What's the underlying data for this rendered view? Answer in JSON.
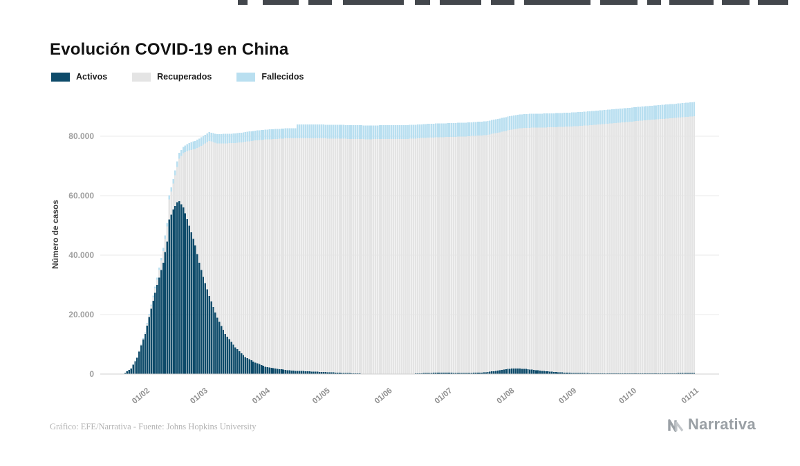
{
  "header": {
    "title": "Evolución COVID-19 en China"
  },
  "y_axis": {
    "title": "Número de casos"
  },
  "footer": {
    "credit": "Gráfico: EFE/Narrativa - Fuente: Johns Hopkins University",
    "logo_text": "Narrativa"
  },
  "top_strip": {
    "color": "#43474c",
    "segments": [
      [
        344,
        14
      ],
      [
        380,
        52
      ],
      [
        446,
        34
      ],
      [
        496,
        88
      ],
      [
        600,
        22
      ],
      [
        636,
        60
      ],
      [
        710,
        34
      ],
      [
        758,
        96
      ],
      [
        868,
        54
      ],
      [
        936,
        20
      ],
      [
        968,
        64
      ],
      [
        1044,
        40
      ],
      [
        1096,
        44
      ]
    ]
  },
  "chart_data": {
    "type": "bar",
    "stacked": true,
    "title": "Evolución COVID-19 en China",
    "xlabel": "",
    "ylabel": "Número de casos",
    "ylim": [
      0,
      95000
    ],
    "grid": "horizontal",
    "legend_position": "top-left",
    "series": [
      {
        "key": "activos",
        "name": "Activos",
        "color": "#0e4b6a"
      },
      {
        "key": "recuperados",
        "name": "Recuperados",
        "color": "#e4e4e4"
      },
      {
        "key": "fallecidos",
        "name": "Fallecidos",
        "color": "#b9dff0"
      }
    ],
    "y_ticks": [
      {
        "value": 0,
        "label": "0"
      },
      {
        "value": 20000,
        "label": "20.000"
      },
      {
        "value": 40000,
        "label": "40.000"
      },
      {
        "value": 60000,
        "label": "60.000"
      },
      {
        "value": 80000,
        "label": "80.000"
      }
    ],
    "x_ticks": [
      {
        "day": 10,
        "label": "01/02"
      },
      {
        "day": 39,
        "label": "01/03"
      },
      {
        "day": 70,
        "label": "01/04"
      },
      {
        "day": 100,
        "label": "01/05"
      },
      {
        "day": 131,
        "label": "01/06"
      },
      {
        "day": 161,
        "label": "01/07"
      },
      {
        "day": 192,
        "label": "01/08"
      },
      {
        "day": 223,
        "label": "01/09"
      },
      {
        "day": 253,
        "label": "01/10"
      },
      {
        "day": 284,
        "label": "01/11"
      }
    ],
    "x_range_days": [
      0,
      284
    ],
    "point_format": [
      "day",
      "activos",
      "recuperados",
      "fallecidos"
    ],
    "points": [
      [
        0,
        400,
        30,
        17
      ],
      [
        3,
        1900,
        50,
        56
      ],
      [
        6,
        5500,
        110,
        131
      ],
      [
        8,
        9700,
        190,
        213
      ],
      [
        10,
        13500,
        330,
        259
      ],
      [
        13,
        22000,
        900,
        425
      ],
      [
        16,
        30000,
        1800,
        636
      ],
      [
        19,
        37500,
        3900,
        1016
      ],
      [
        21,
        44500,
        5100,
        1260
      ],
      [
        22,
        52000,
        6700,
        1368
      ],
      [
        24,
        55300,
        8800,
        1523
      ],
      [
        26,
        57800,
        11900,
        1770
      ],
      [
        27,
        58100,
        14400,
        1870
      ],
      [
        29,
        56000,
        18300,
        2130
      ],
      [
        31,
        52100,
        22900,
        2360
      ],
      [
        33,
        47700,
        27700,
        2595
      ],
      [
        35,
        43200,
        32500,
        2715
      ],
      [
        37,
        37400,
        39000,
        2790
      ],
      [
        39,
        32700,
        44500,
        2870
      ],
      [
        42,
        26300,
        52100,
        2984
      ],
      [
        46,
        18900,
        58700,
        3100
      ],
      [
        50,
        13500,
        64100,
        3176
      ],
      [
        55,
        8970,
        68700,
        3237
      ],
      [
        60,
        5740,
        72400,
        3274
      ],
      [
        65,
        3870,
        74700,
        3296
      ],
      [
        70,
        2500,
        76400,
        3312
      ],
      [
        75,
        1860,
        77200,
        3331
      ],
      [
        80,
        1380,
        77900,
        3343
      ],
      [
        85,
        1100,
        78200,
        3350
      ],
      [
        86,
        1080,
        78250,
        4636
      ],
      [
        90,
        960,
        78400,
        4636
      ],
      [
        100,
        650,
        78600,
        4637
      ],
      [
        110,
        340,
        78800,
        4637
      ],
      [
        120,
        130,
        78870,
        4638
      ],
      [
        131,
        90,
        78950,
        4638
      ],
      [
        140,
        80,
        79000,
        4638
      ],
      [
        146,
        220,
        79050,
        4638
      ],
      [
        152,
        400,
        79150,
        4638
      ],
      [
        161,
        440,
        79300,
        4639
      ],
      [
        170,
        330,
        79600,
        4639
      ],
      [
        180,
        560,
        79800,
        4640
      ],
      [
        187,
        1300,
        80000,
        4650
      ],
      [
        192,
        1800,
        80300,
        4655
      ],
      [
        196,
        1900,
        80700,
        4660
      ],
      [
        200,
        1700,
        81100,
        4666
      ],
      [
        205,
        1300,
        81600,
        4672
      ],
      [
        210,
        950,
        82000,
        4678
      ],
      [
        216,
        600,
        82500,
        4684
      ],
      [
        223,
        380,
        82900,
        4690
      ],
      [
        232,
        280,
        83400,
        4698
      ],
      [
        242,
        250,
        84000,
        4706
      ],
      [
        253,
        240,
        84700,
        4714
      ],
      [
        263,
        260,
        85300,
        4722
      ],
      [
        273,
        280,
        85800,
        4731
      ],
      [
        284,
        320,
        86400,
        4742
      ]
    ]
  }
}
